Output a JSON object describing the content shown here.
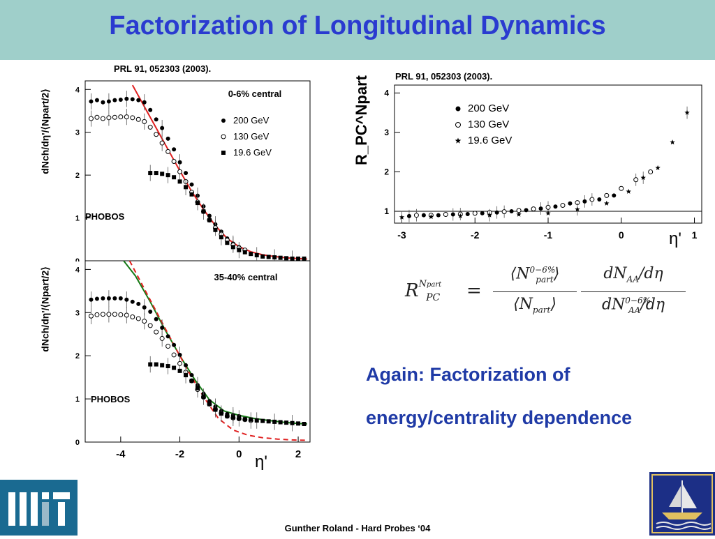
{
  "title": "Factorization of Longitudinal Dynamics",
  "citations": [
    "PRL 91, 052303 (2003).",
    "PRL 91, 052303 (2003)."
  ],
  "note_lines": [
    "Again: Factorization of",
    "energy/centrality dependence"
  ],
  "footer": "Gunther Roland - Hard Probes ‘04",
  "colors": {
    "title": "#2a3bd0",
    "title_bar": "#9fcfca",
    "note": "#1f3aa6",
    "fit_red": "#e02020",
    "fit_green": "#157a15"
  },
  "logos": [
    "mit-logo",
    "ship-logo"
  ],
  "chart_data": [
    {
      "type": "scatter",
      "panel_label": "0-6% central",
      "experiment": "PHOBOS",
      "ylabel": "dNch/dη'/⟨Npart/2⟩",
      "xlim": [
        -5.2,
        2.4
      ],
      "ylim": [
        0,
        4.2
      ],
      "yticks": [
        "0",
        "1",
        "2",
        "3",
        "4"
      ],
      "series": [
        {
          "name": "200  GeV",
          "marker": "filled-circle",
          "x": [
            -5.0,
            -4.8,
            -4.6,
            -4.4,
            -4.2,
            -4.0,
            -3.8,
            -3.6,
            -3.4,
            -3.2,
            -3.0,
            -2.8,
            -2.6,
            -2.4,
            -2.2,
            -2.0,
            -1.8,
            -1.6,
            -1.4,
            -1.2,
            -1.0,
            -0.8,
            -0.6,
            -0.4,
            -0.2,
            0.0
          ],
          "y": [
            3.72,
            3.75,
            3.7,
            3.72,
            3.75,
            3.76,
            3.78,
            3.77,
            3.75,
            3.7,
            3.52,
            3.3,
            3.1,
            2.85,
            2.6,
            2.3,
            2.05,
            1.78,
            1.52,
            1.27,
            1.05,
            0.85,
            0.68,
            0.52,
            0.4,
            0.32
          ]
        },
        {
          "name": "130  GeV",
          "marker": "open-circle",
          "x": [
            -5.0,
            -4.8,
            -4.6,
            -4.4,
            -4.2,
            -4.0,
            -3.8,
            -3.6,
            -3.4,
            -3.2,
            -3.0,
            -2.8,
            -2.6,
            -2.4,
            -2.2,
            -2.0,
            -1.8,
            -1.6,
            -1.4,
            -1.2,
            -1.0,
            -0.8,
            -0.6,
            -0.4,
            -0.2,
            0.0,
            0.2
          ],
          "y": [
            3.32,
            3.35,
            3.32,
            3.34,
            3.35,
            3.36,
            3.36,
            3.34,
            3.3,
            3.25,
            3.12,
            2.95,
            2.75,
            2.55,
            2.32,
            2.08,
            1.85,
            1.6,
            1.37,
            1.15,
            0.95,
            0.77,
            0.62,
            0.48,
            0.37,
            0.3,
            0.25
          ]
        },
        {
          "name": "19.6 GeV",
          "marker": "filled-square",
          "x": [
            -3.0,
            -2.8,
            -2.6,
            -2.4,
            -2.2,
            -2.0,
            -1.8,
            -1.6,
            -1.4,
            -1.2,
            -1.0,
            -0.8,
            -0.6,
            -0.4,
            -0.2,
            0.0,
            0.2,
            0.4,
            0.6,
            0.8,
            1.0,
            1.2,
            1.4,
            1.6,
            1.8,
            2.0,
            2.2
          ],
          "y": [
            2.05,
            2.05,
            2.03,
            2.0,
            1.95,
            1.85,
            1.72,
            1.55,
            1.35,
            1.15,
            0.95,
            0.72,
            0.55,
            0.42,
            0.32,
            0.25,
            0.2,
            0.16,
            0.13,
            0.1,
            0.09,
            0.08,
            0.07,
            0.06,
            0.05,
            0.05,
            0.05
          ]
        }
      ],
      "fit_lines": [
        {
          "color": "red",
          "style": "solid",
          "x": [
            -3.6,
            -3.2,
            -2.8,
            -2.4,
            -2.0,
            -1.6,
            -1.2,
            -0.8,
            -0.4,
            0,
            0.4,
            0.8,
            1.2,
            1.6,
            2.0,
            2.3
          ],
          "y": [
            4.1,
            3.6,
            3.1,
            2.6,
            2.1,
            1.62,
            1.2,
            0.82,
            0.52,
            0.33,
            0.21,
            0.14,
            0.1,
            0.07,
            0.05,
            0.04
          ]
        }
      ]
    },
    {
      "type": "scatter",
      "panel_label": "35-40% central",
      "experiment": "PHOBOS",
      "ylabel": "dNch/dη'/⟨Npart/2⟩",
      "xlabel": "η'",
      "xlim": [
        -5.2,
        2.4
      ],
      "ylim": [
        0,
        4.2
      ],
      "xticks": [
        "-4",
        "-2",
        "0",
        "2"
      ],
      "yticks": [
        "0",
        "1",
        "2",
        "3",
        "4"
      ],
      "series": [
        {
          "name": "200  GeV",
          "marker": "filled-circle",
          "x": [
            -5.0,
            -4.8,
            -4.6,
            -4.4,
            -4.2,
            -4.0,
            -3.8,
            -3.6,
            -3.4,
            -3.2,
            -3.0,
            -2.8,
            -2.6,
            -2.4,
            -2.2,
            -2.0,
            -1.8,
            -1.6,
            -1.4,
            -1.2,
            -1.0,
            -0.8,
            -0.6,
            -0.4,
            -0.2,
            0.0
          ],
          "y": [
            3.3,
            3.32,
            3.33,
            3.33,
            3.33,
            3.33,
            3.3,
            3.25,
            3.2,
            3.12,
            3.02,
            2.85,
            2.65,
            2.45,
            2.25,
            2.02,
            1.78,
            1.55,
            1.32,
            1.12,
            0.95,
            0.82,
            0.72,
            0.65,
            0.62,
            0.6
          ]
        },
        {
          "name": "130  GeV",
          "marker": "open-circle",
          "x": [
            -5.0,
            -4.8,
            -4.6,
            -4.4,
            -4.2,
            -4.0,
            -3.8,
            -3.6,
            -3.4,
            -3.2,
            -3.0,
            -2.8,
            -2.6,
            -2.4,
            -2.2,
            -2.0,
            -1.8,
            -1.6,
            -1.4,
            -1.2,
            -1.0,
            -0.8,
            -0.6,
            -0.4,
            -0.2,
            0.0,
            0.2,
            0.4
          ],
          "y": [
            2.92,
            2.95,
            2.96,
            2.96,
            2.96,
            2.95,
            2.94,
            2.9,
            2.86,
            2.8,
            2.7,
            2.55,
            2.4,
            2.22,
            2.02,
            1.82,
            1.62,
            1.42,
            1.22,
            1.04,
            0.88,
            0.76,
            0.67,
            0.6,
            0.56,
            0.54,
            0.52,
            0.5
          ]
        },
        {
          "name": "19.6 GeV",
          "marker": "filled-square",
          "x": [
            -3.0,
            -2.8,
            -2.6,
            -2.4,
            -2.2,
            -2.0,
            -1.8,
            -1.6,
            -1.4,
            -1.2,
            -1.0,
            -0.8,
            -0.6,
            -0.4,
            -0.2,
            0.0,
            0.2,
            0.4,
            0.6,
            0.8,
            1.0,
            1.2,
            1.4,
            1.6,
            1.8,
            2.0,
            2.2
          ],
          "y": [
            1.8,
            1.8,
            1.78,
            1.76,
            1.72,
            1.65,
            1.55,
            1.42,
            1.25,
            1.05,
            0.88,
            0.75,
            0.66,
            0.6,
            0.57,
            0.55,
            0.53,
            0.52,
            0.5,
            0.49,
            0.48,
            0.47,
            0.46,
            0.45,
            0.44,
            0.43,
            0.42
          ]
        }
      ],
      "fit_lines": [
        {
          "color": "green",
          "style": "solid",
          "x": [
            -3.9,
            -3.5,
            -3.0,
            -2.5,
            -2.0,
            -1.5,
            -1.0,
            -0.5,
            0,
            0.5,
            1.0,
            1.5,
            2.0,
            2.3
          ],
          "y": [
            4.3,
            3.85,
            3.25,
            2.6,
            2.0,
            1.45,
            0.98,
            0.72,
            0.62,
            0.55,
            0.5,
            0.46,
            0.43,
            0.42
          ]
        },
        {
          "color": "red",
          "style": "dashed",
          "x": [
            -3.7,
            -3.2,
            -2.7,
            -2.2,
            -1.7,
            -1.2,
            -0.7,
            -0.2,
            0.3,
            0.8,
            1.3,
            1.8,
            2.3
          ],
          "y": [
            4.2,
            3.55,
            2.9,
            2.25,
            1.62,
            1.05,
            0.55,
            0.28,
            0.16,
            0.1,
            0.07,
            0.05,
            0.04
          ]
        }
      ]
    },
    {
      "type": "scatter",
      "ylabel": "R_PC^Npart",
      "xlabel": "η'",
      "xlim": [
        -3.1,
        1.1
      ],
      "ylim": [
        0.7,
        4.2
      ],
      "xticks": [
        "-3",
        "-2",
        "-1",
        "0",
        "1"
      ],
      "yticks": [
        "1",
        "2",
        "3",
        "4"
      ],
      "reference_line": 1,
      "series": [
        {
          "name": "200  GeV",
          "marker": "filled-circle",
          "x": [
            -2.9,
            -2.7,
            -2.5,
            -2.3,
            -2.1,
            -1.9,
            -1.7,
            -1.5,
            -1.3,
            -1.1,
            -0.9,
            -0.7,
            -0.5,
            -0.3,
            -0.1
          ],
          "y": [
            0.88,
            0.9,
            0.9,
            0.92,
            0.93,
            0.95,
            0.97,
            1.0,
            1.03,
            1.07,
            1.12,
            1.2,
            1.25,
            1.3,
            1.4
          ]
        },
        {
          "name": "130  GeV",
          "marker": "open-circle",
          "x": [
            -2.8,
            -2.6,
            -2.4,
            -2.2,
            -2.0,
            -1.8,
            -1.6,
            -1.4,
            -1.2,
            -1.0,
            -0.8,
            -0.6,
            -0.4,
            -0.2,
            0.0,
            0.2,
            0.4
          ],
          "y": [
            0.9,
            0.9,
            0.92,
            0.93,
            0.95,
            0.97,
            0.99,
            1.02,
            1.06,
            1.1,
            1.15,
            1.22,
            1.3,
            1.4,
            1.58,
            1.8,
            2.0
          ]
        },
        {
          "name": "19.6 GeV",
          "marker": "star",
          "x": [
            -3.0,
            -2.6,
            -2.2,
            -1.8,
            -1.4,
            -1.0,
            -0.6,
            -0.2,
            0.1,
            0.3,
            0.5,
            0.7,
            0.9
          ],
          "y": [
            0.85,
            0.86,
            0.88,
            0.9,
            0.92,
            0.95,
            1.05,
            1.2,
            1.5,
            1.85,
            2.1,
            2.75,
            3.5
          ]
        }
      ]
    }
  ],
  "formula": {
    "lhs_main": "R",
    "lhs_sup": "N",
    "lhs_sup_sub": "part",
    "lhs_sub": "PC",
    "equals": "=",
    "num1": "⟨N",
    "num1_sup": "0−6%",
    "num1_sub": "part",
    "num1_close": "⟩",
    "den1": "⟨N",
    "den1_sub": "part",
    "den1_close": "⟩",
    "num2": "dN",
    "num2_sub": "AA",
    "num2_tail": "/dη",
    "den2": "dN",
    "den2_sup": "0−6%",
    "den2_sub": "AA",
    "den2_tail": "/dη"
  }
}
